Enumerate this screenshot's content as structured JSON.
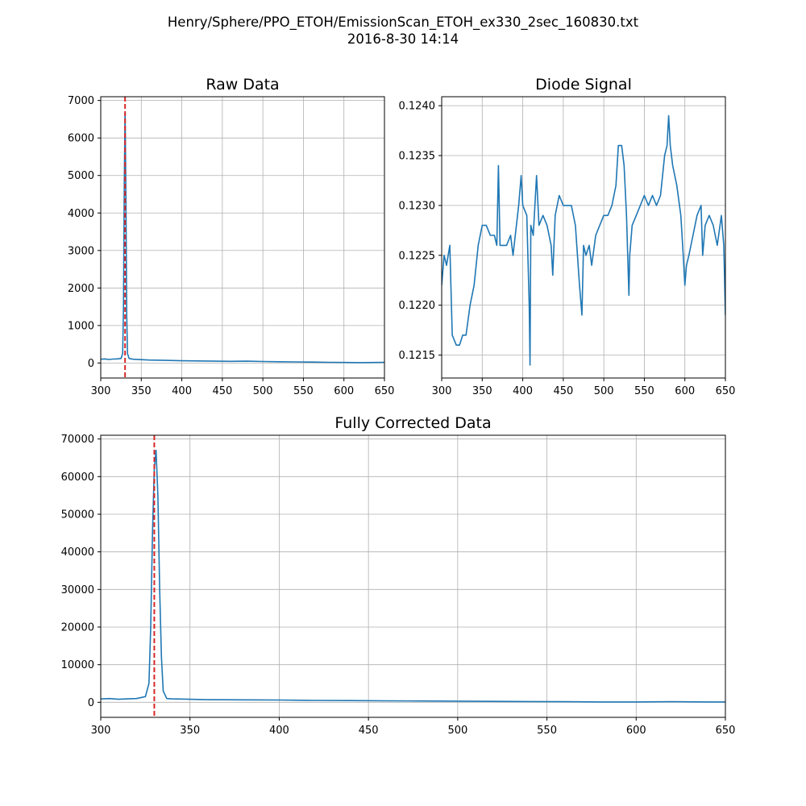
{
  "figure": {
    "title_line1": "Henry/Sphere/PPO_ETOH/EmissionScan_ETOH_ex330_2sec_160830.txt",
    "title_line2": "2016-8-30     14:14",
    "line_color": "#1f77b4",
    "marker_color": "#d62728",
    "grid_color": "#b0b0b0"
  },
  "chart_data": [
    {
      "id": "raw",
      "type": "line",
      "title": "Raw Data",
      "xlabel": "",
      "ylabel": "",
      "xlim": [
        300,
        650
      ],
      "ylim": [
        -400,
        7100
      ],
      "xticks": [
        300,
        350,
        400,
        450,
        500,
        550,
        600,
        650
      ],
      "yticks": [
        0,
        1000,
        2000,
        3000,
        4000,
        5000,
        6000,
        7000
      ],
      "grid": true,
      "vline": 330,
      "series": [
        {
          "name": "raw",
          "x": [
            300,
            305,
            310,
            315,
            320,
            325,
            327,
            328,
            329,
            330,
            331,
            332,
            333,
            335,
            340,
            350,
            360,
            380,
            400,
            420,
            440,
            460,
            480,
            500,
            520,
            540,
            560,
            580,
            600,
            620,
            640,
            650
          ],
          "y": [
            100,
            110,
            95,
            105,
            110,
            120,
            250,
            1500,
            4800,
            6700,
            4500,
            1300,
            250,
            120,
            100,
            90,
            80,
            70,
            60,
            55,
            50,
            45,
            50,
            40,
            35,
            30,
            25,
            20,
            15,
            10,
            15,
            20
          ]
        }
      ]
    },
    {
      "id": "diode",
      "type": "line",
      "title": "Diode Signal",
      "xlabel": "",
      "ylabel": "",
      "xlim": [
        300,
        650
      ],
      "ylim": [
        0.12127,
        0.12409
      ],
      "xticks": [
        300,
        350,
        400,
        450,
        500,
        550,
        600,
        650
      ],
      "yticks": [
        0.1215,
        0.122,
        0.1225,
        0.123,
        0.1235,
        0.124
      ],
      "ytick_labels": [
        "0.1215",
        "0.1220",
        "0.1225",
        "0.1230",
        "0.1235",
        "0.1240"
      ],
      "grid": true,
      "series": [
        {
          "name": "diode",
          "x": [
            300,
            303,
            306,
            310,
            313,
            318,
            322,
            326,
            330,
            335,
            340,
            345,
            350,
            355,
            360,
            365,
            368,
            370,
            372,
            380,
            385,
            388,
            395,
            398,
            400,
            405,
            408,
            409,
            410,
            413,
            417,
            420,
            425,
            430,
            435,
            437,
            440,
            445,
            450,
            455,
            460,
            465,
            470,
            473,
            475,
            478,
            482,
            485,
            490,
            495,
            500,
            505,
            510,
            515,
            518,
            522,
            525,
            528,
            531,
            532,
            535,
            540,
            545,
            550,
            555,
            560,
            565,
            570,
            575,
            578,
            580,
            582,
            585,
            590,
            595,
            598,
            600,
            602,
            605,
            610,
            615,
            620,
            622,
            625,
            630,
            635,
            640,
            645,
            648,
            650
          ],
          "y": [
            0.1222,
            0.1225,
            0.1224,
            0.1226,
            0.1217,
            0.1216,
            0.1216,
            0.1217,
            0.1217,
            0.122,
            0.1222,
            0.1226,
            0.1228,
            0.1228,
            0.1227,
            0.1227,
            0.1226,
            0.1234,
            0.1226,
            0.1226,
            0.1227,
            0.1225,
            0.123,
            0.1233,
            0.123,
            0.1229,
            0.122,
            0.1214,
            0.1228,
            0.1227,
            0.1233,
            0.1228,
            0.1229,
            0.1228,
            0.1226,
            0.1223,
            0.1229,
            0.1231,
            0.123,
            0.123,
            0.123,
            0.1228,
            0.1222,
            0.1219,
            0.1226,
            0.1225,
            0.1226,
            0.1224,
            0.1227,
            0.1228,
            0.1229,
            0.1229,
            0.123,
            0.1232,
            0.1236,
            0.1236,
            0.1234,
            0.1229,
            0.1221,
            0.1225,
            0.1228,
            0.1229,
            0.123,
            0.1231,
            0.123,
            0.1231,
            0.123,
            0.1231,
            0.1235,
            0.1236,
            0.1239,
            0.1236,
            0.1234,
            0.1232,
            0.1229,
            0.1225,
            0.1222,
            0.1224,
            0.1225,
            0.1227,
            0.1229,
            0.123,
            0.1225,
            0.1228,
            0.1229,
            0.1228,
            0.1226,
            0.1229,
            0.1226,
            0.1219
          ]
        }
      ]
    },
    {
      "id": "corrected",
      "type": "line",
      "title": "Fully Corrected Data",
      "xlabel": "",
      "ylabel": "",
      "xlim": [
        300,
        650
      ],
      "ylim": [
        -4000,
        71000
      ],
      "xticks": [
        300,
        350,
        400,
        450,
        500,
        550,
        600,
        650
      ],
      "yticks": [
        0,
        10000,
        20000,
        30000,
        40000,
        50000,
        60000,
        70000
      ],
      "grid": true,
      "vline": 330,
      "series": [
        {
          "name": "corrected",
          "x": [
            300,
            305,
            310,
            315,
            320,
            325,
            327,
            328,
            329,
            330,
            331,
            332,
            333,
            334,
            335,
            337,
            340,
            350,
            360,
            380,
            400,
            420,
            440,
            460,
            480,
            500,
            520,
            540,
            560,
            580,
            600,
            620,
            640,
            650
          ],
          "y": [
            900,
            1000,
            800,
            900,
            1000,
            1500,
            5000,
            20000,
            45000,
            62000,
            67000,
            55000,
            30000,
            12000,
            3000,
            1000,
            900,
            800,
            700,
            650,
            600,
            500,
            450,
            400,
            350,
            300,
            250,
            200,
            150,
            100,
            100,
            150,
            100,
            100
          ]
        }
      ]
    }
  ]
}
